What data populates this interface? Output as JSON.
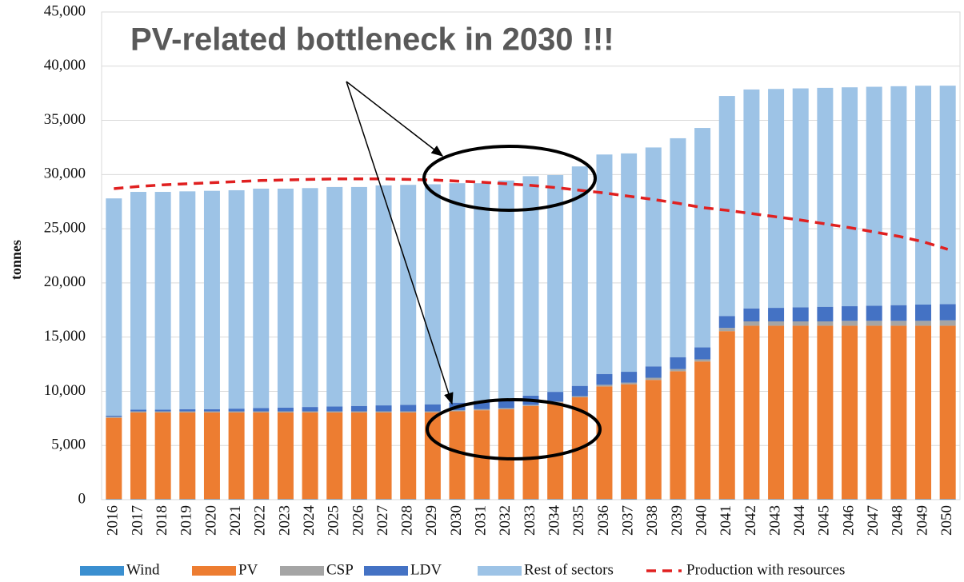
{
  "chart_data": {
    "type": "bar",
    "stacked": true,
    "annotation": "PV-related bottleneck in 2030 !!!",
    "y_label": "tonnes",
    "categories": [
      "2016",
      "2017",
      "2018",
      "2019",
      "2020",
      "2021",
      "2022",
      "2023",
      "2024",
      "2025",
      "2026",
      "2027",
      "2028",
      "2029",
      "2030",
      "2031",
      "2032",
      "2033",
      "2034",
      "2035",
      "2036",
      "2037",
      "2038",
      "2039",
      "2040",
      "2041",
      "2042",
      "2043",
      "2044",
      "2045",
      "2046",
      "2047",
      "2048",
      "2049",
      "2050"
    ],
    "series": [
      {
        "name": "Wind",
        "color": "#3a8fd0",
        "values": [
          50,
          50,
          50,
          50,
          50,
          50,
          50,
          50,
          50,
          50,
          50,
          50,
          50,
          50,
          50,
          50,
          50,
          50,
          50,
          50,
          50,
          50,
          50,
          50,
          50,
          50,
          50,
          50,
          50,
          50,
          50,
          50,
          50,
          50,
          50
        ]
      },
      {
        "name": "PV",
        "color": "#ed7d31",
        "values": [
          7500,
          8000,
          8000,
          8000,
          8000,
          8000,
          8000,
          8000,
          8000,
          8000,
          8000,
          8000,
          8000,
          8000,
          8100,
          8200,
          8300,
          8600,
          8900,
          9400,
          10400,
          10600,
          11000,
          11800,
          12700,
          15500,
          16000,
          16000,
          16000,
          16000,
          16000,
          16000,
          16000,
          16000,
          16000
        ]
      },
      {
        "name": "CSP",
        "color": "#a5a5a5",
        "values": [
          100,
          100,
          100,
          100,
          100,
          100,
          100,
          100,
          100,
          100,
          100,
          100,
          100,
          100,
          100,
          100,
          100,
          100,
          100,
          100,
          150,
          150,
          200,
          200,
          200,
          300,
          400,
          400,
          400,
          400,
          450,
          450,
          450,
          450,
          500
        ]
      },
      {
        "name": "LDV",
        "color": "#4472c4",
        "values": [
          100,
          150,
          150,
          200,
          200,
          250,
          300,
          350,
          400,
          450,
          500,
          550,
          600,
          650,
          700,
          750,
          800,
          850,
          900,
          950,
          1000,
          1000,
          1050,
          1100,
          1100,
          1100,
          1200,
          1250,
          1300,
          1350,
          1350,
          1400,
          1450,
          1500,
          1500
        ]
      },
      {
        "name": "Rest of sectors",
        "color": "#9dc3e6",
        "values": [
          20050,
          20100,
          20100,
          20100,
          20150,
          20150,
          20250,
          20200,
          20200,
          20250,
          20200,
          20300,
          20300,
          20300,
          20250,
          20100,
          20200,
          20250,
          20000,
          20250,
          20250,
          20150,
          20200,
          20200,
          20250,
          20300,
          20200,
          20200,
          20200,
          20200,
          20200,
          20200,
          20200,
          20200,
          20150
        ]
      },
      {
        "name": "Production with resources",
        "type": "line",
        "style": "dashed",
        "color": "#e02020",
        "values": [
          28700,
          28900,
          29050,
          29150,
          29250,
          29350,
          29450,
          29500,
          29550,
          29600,
          29600,
          29600,
          29550,
          29500,
          29400,
          29300,
          29150,
          29000,
          28800,
          28550,
          28300,
          28000,
          27700,
          27350,
          26950,
          26700,
          26400,
          26100,
          25800,
          25450,
          25100,
          24700,
          24300,
          23800,
          23100
        ]
      }
    ],
    "ylim": [
      0,
      45000
    ],
    "yticks": [
      0,
      {
        "value": 5000,
        "label": "5,000"
      },
      {
        "value": 10000,
        "label": "10,000"
      },
      {
        "value": 15000,
        "label": "15,000"
      },
      {
        "value": 20000,
        "label": "20,000"
      },
      {
        "value": 25000,
        "label": "25,000"
      },
      {
        "value": 30000,
        "label": "30,000"
      },
      {
        "value": 35000,
        "label": "35,000"
      },
      {
        "value": 40000,
        "label": "40,000"
      },
      {
        "value": 45000,
        "label": "45,000"
      }
    ],
    "grid": true
  }
}
